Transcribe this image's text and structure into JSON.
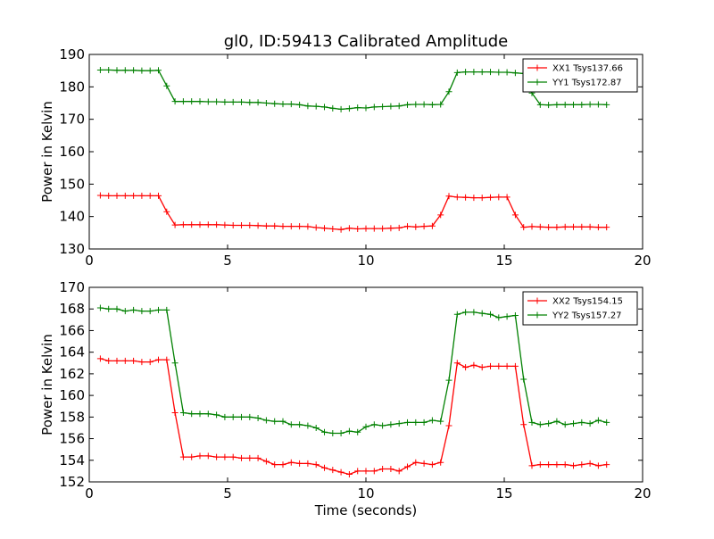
{
  "figure": {
    "title": "gl0, ID:59413 Calibrated Amplitude",
    "xlabel": "Time (seconds)"
  },
  "colors": {
    "red": "#ff0000",
    "green": "#008000"
  },
  "chart_data": [
    {
      "type": "line",
      "ylabel": "Power in Kelvin",
      "xlim": [
        0,
        20
      ],
      "ylim": [
        130,
        190
      ],
      "xticks": [
        "0",
        "5",
        "10",
        "15",
        "20"
      ],
      "yticks": [
        "130",
        "140",
        "150",
        "160",
        "170",
        "180",
        "190"
      ],
      "legend_position": "top-right",
      "series": [
        {
          "name": "XX1 Tsys137.66",
          "color": "red",
          "x": [
            0.4,
            0.7,
            1.0,
            1.3,
            1.6,
            1.9,
            2.2,
            2.5,
            2.8,
            3.1,
            3.4,
            3.7,
            4.0,
            4.3,
            4.6,
            4.9,
            5.2,
            5.5,
            5.8,
            6.1,
            6.4,
            6.7,
            7.0,
            7.3,
            7.6,
            7.9,
            8.2,
            8.5,
            8.8,
            9.1,
            9.4,
            9.7,
            10.0,
            10.3,
            10.6,
            10.9,
            11.2,
            11.5,
            11.8,
            12.1,
            12.4,
            12.7,
            13.0,
            13.3,
            13.6,
            13.9,
            14.2,
            14.5,
            14.8,
            15.1,
            15.4,
            15.7,
            16.0,
            16.3,
            16.6,
            16.9,
            17.2,
            17.5,
            17.8,
            18.1,
            18.4,
            18.7
          ],
          "values": [
            146.5,
            146.4,
            146.4,
            146.4,
            146.4,
            146.4,
            146.4,
            146.4,
            141.5,
            137.4,
            137.5,
            137.5,
            137.5,
            137.5,
            137.5,
            137.4,
            137.3,
            137.3,
            137.3,
            137.2,
            137.1,
            137.1,
            137.0,
            137.0,
            137.0,
            136.9,
            136.6,
            136.4,
            136.2,
            136.0,
            136.4,
            136.2,
            136.3,
            136.3,
            136.3,
            136.4,
            136.5,
            137.0,
            136.8,
            137.0,
            137.1,
            140.5,
            146.3,
            146.0,
            145.9,
            145.8,
            145.8,
            145.9,
            146.0,
            146.0,
            140.5,
            136.7,
            136.9,
            136.8,
            136.7,
            136.7,
            136.8,
            136.8,
            136.8,
            136.8,
            136.7,
            136.7
          ]
        },
        {
          "name": "YY1 Tsys172.87",
          "color": "green",
          "x": [
            0.4,
            0.7,
            1.0,
            1.3,
            1.6,
            1.9,
            2.2,
            2.5,
            2.8,
            3.1,
            3.4,
            3.7,
            4.0,
            4.3,
            4.6,
            4.9,
            5.2,
            5.5,
            5.8,
            6.1,
            6.4,
            6.7,
            7.0,
            7.3,
            7.6,
            7.9,
            8.2,
            8.5,
            8.8,
            9.1,
            9.4,
            9.7,
            10.0,
            10.3,
            10.6,
            10.9,
            11.2,
            11.5,
            11.8,
            12.1,
            12.4,
            12.7,
            13.0,
            13.3,
            13.6,
            13.9,
            14.2,
            14.5,
            14.8,
            15.1,
            15.4,
            15.7,
            16.0,
            16.3,
            16.6,
            16.9,
            17.2,
            17.5,
            17.8,
            18.1,
            18.4,
            18.7
          ],
          "values": [
            185.2,
            185.2,
            185.1,
            185.1,
            185.1,
            185.0,
            185.0,
            185.1,
            180.3,
            175.5,
            175.5,
            175.5,
            175.5,
            175.4,
            175.4,
            175.3,
            175.3,
            175.3,
            175.2,
            175.2,
            175.0,
            174.8,
            174.7,
            174.7,
            174.5,
            174.1,
            174.0,
            173.8,
            173.4,
            173.1,
            173.3,
            173.6,
            173.5,
            173.8,
            173.9,
            174.0,
            174.1,
            174.5,
            174.6,
            174.6,
            174.5,
            174.6,
            178.5,
            184.4,
            184.6,
            184.6,
            184.6,
            184.6,
            184.5,
            184.5,
            184.3,
            184.1,
            178.1,
            174.5,
            174.4,
            174.5,
            174.5,
            174.5,
            174.5,
            174.6,
            174.6,
            174.5
          ]
        }
      ]
    },
    {
      "type": "line",
      "ylabel": "Power in Kelvin",
      "xlim": [
        0,
        20
      ],
      "ylim": [
        152,
        170
      ],
      "xticks": [
        "0",
        "5",
        "10",
        "15",
        "20"
      ],
      "yticks": [
        "152",
        "154",
        "156",
        "158",
        "160",
        "162",
        "164",
        "166",
        "168",
        "170"
      ],
      "legend_position": "top-right",
      "series": [
        {
          "name": "XX2 Tsys154.15",
          "color": "red",
          "x": [
            0.4,
            0.7,
            1.0,
            1.3,
            1.6,
            1.9,
            2.2,
            2.5,
            2.8,
            3.1,
            3.4,
            3.7,
            4.0,
            4.3,
            4.6,
            4.9,
            5.2,
            5.5,
            5.8,
            6.1,
            6.4,
            6.7,
            7.0,
            7.3,
            7.6,
            7.9,
            8.2,
            8.5,
            8.8,
            9.1,
            9.4,
            9.7,
            10.0,
            10.3,
            10.6,
            10.9,
            11.2,
            11.5,
            11.8,
            12.1,
            12.4,
            12.7,
            13.0,
            13.3,
            13.6,
            13.9,
            14.2,
            14.5,
            14.8,
            15.1,
            15.4,
            15.7,
            16.0,
            16.3,
            16.6,
            16.9,
            17.2,
            17.5,
            17.8,
            18.1,
            18.4,
            18.7
          ],
          "values": [
            163.4,
            163.2,
            163.2,
            163.2,
            163.2,
            163.1,
            163.1,
            163.3,
            163.3,
            158.4,
            154.3,
            154.3,
            154.4,
            154.4,
            154.3,
            154.3,
            154.3,
            154.2,
            154.2,
            154.2,
            153.9,
            153.6,
            153.6,
            153.8,
            153.7,
            153.7,
            153.6,
            153.3,
            153.1,
            152.9,
            152.7,
            153.0,
            153.0,
            153.0,
            153.2,
            153.2,
            153.0,
            153.4,
            153.8,
            153.7,
            153.6,
            153.8,
            157.2,
            163.0,
            162.6,
            162.8,
            162.6,
            162.7,
            162.7,
            162.7,
            162.7,
            157.3,
            153.5,
            153.6,
            153.6,
            153.6,
            153.6,
            153.5,
            153.6,
            153.7,
            153.5,
            153.6
          ]
        },
        {
          "name": "YY2 Tsys157.27",
          "color": "green",
          "x": [
            0.4,
            0.7,
            1.0,
            1.3,
            1.6,
            1.9,
            2.2,
            2.5,
            2.8,
            3.1,
            3.4,
            3.7,
            4.0,
            4.3,
            4.6,
            4.9,
            5.2,
            5.5,
            5.8,
            6.1,
            6.4,
            6.7,
            7.0,
            7.3,
            7.6,
            7.9,
            8.2,
            8.5,
            8.8,
            9.1,
            9.4,
            9.7,
            10.0,
            10.3,
            10.6,
            10.9,
            11.2,
            11.5,
            11.8,
            12.1,
            12.4,
            12.7,
            13.0,
            13.3,
            13.6,
            13.9,
            14.2,
            14.5,
            14.8,
            15.1,
            15.4,
            15.7,
            16.0,
            16.3,
            16.6,
            16.9,
            17.2,
            17.5,
            17.8,
            18.1,
            18.4,
            18.7
          ],
          "values": [
            168.1,
            168.0,
            168.0,
            167.8,
            167.9,
            167.8,
            167.8,
            167.9,
            167.9,
            163.0,
            158.4,
            158.3,
            158.3,
            158.3,
            158.2,
            158.0,
            158.0,
            158.0,
            158.0,
            157.9,
            157.7,
            157.6,
            157.6,
            157.3,
            157.3,
            157.2,
            157.0,
            156.6,
            156.5,
            156.5,
            156.7,
            156.6,
            157.1,
            157.3,
            157.2,
            157.3,
            157.4,
            157.5,
            157.5,
            157.5,
            157.7,
            157.6,
            161.4,
            167.5,
            167.7,
            167.7,
            167.6,
            167.5,
            167.2,
            167.3,
            167.4,
            161.5,
            157.5,
            157.3,
            157.4,
            157.6,
            157.3,
            157.4,
            157.5,
            157.4,
            157.7,
            157.5
          ]
        }
      ]
    }
  ]
}
